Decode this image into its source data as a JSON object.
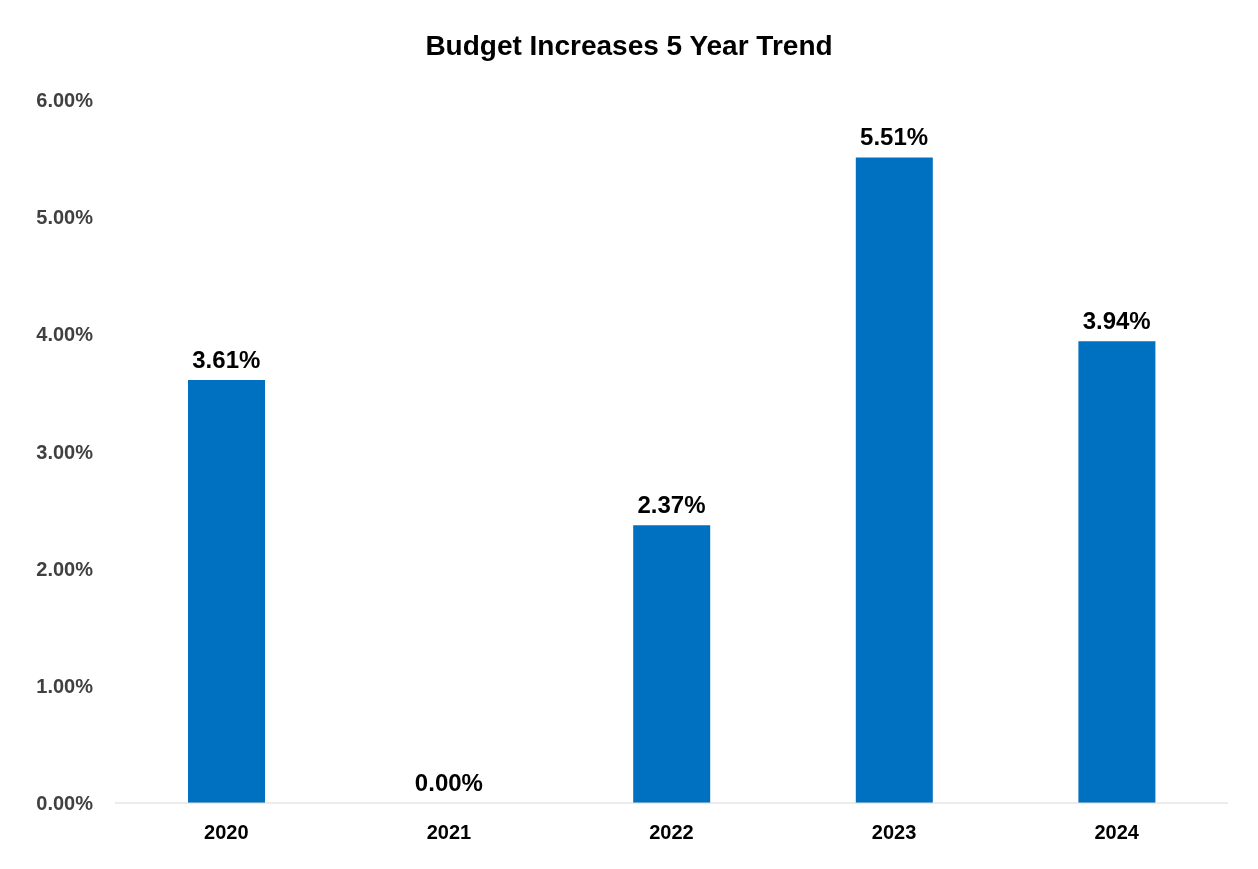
{
  "chart_data": {
    "type": "bar",
    "title": "Budget Increases 5 Year Trend",
    "categories": [
      "2020",
      "2021",
      "2022",
      "2023",
      "2024"
    ],
    "values": [
      3.61,
      0,
      2.37,
      5.51,
      3.94
    ],
    "value_labels": [
      "3.61%",
      "0.00%",
      "2.37%",
      "5.51%",
      "3.94%"
    ],
    "color": "#0070c0",
    "ylim": [
      0,
      6
    ],
    "yticks": [
      {
        "value": 0,
        "label": "0.00%"
      },
      {
        "value": 1,
        "label": "1.00%"
      },
      {
        "value": 2,
        "label": "2.00%"
      },
      {
        "value": 3,
        "label": "3.00%"
      },
      {
        "value": 4,
        "label": "4.00%"
      },
      {
        "value": 5,
        "label": "5.00%"
      },
      {
        "value": 6,
        "label": "6.00%"
      }
    ],
    "grid": false,
    "legend": false
  }
}
